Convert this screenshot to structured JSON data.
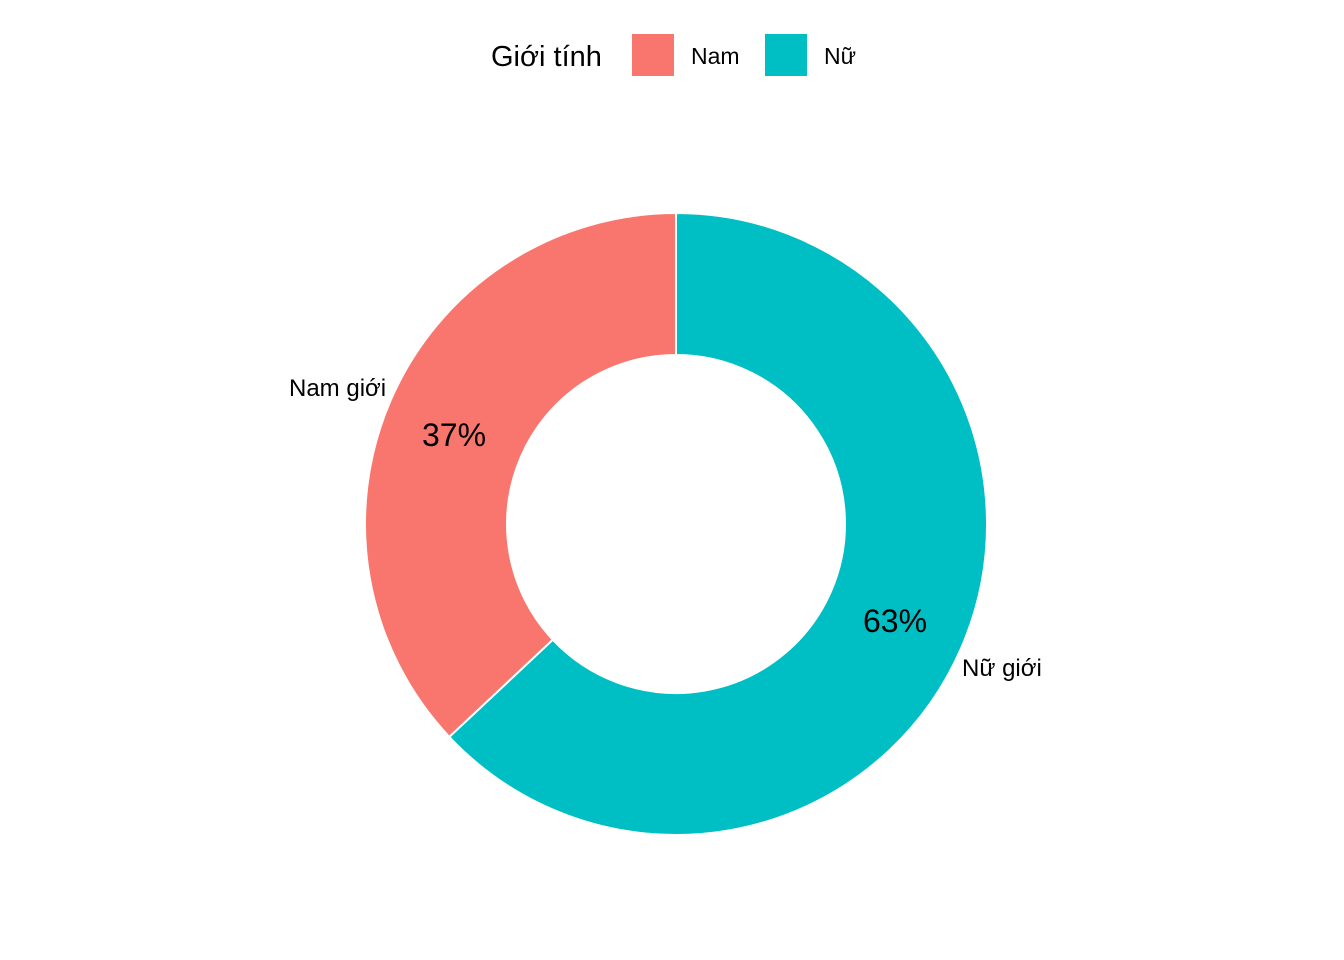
{
  "chart_data": {
    "type": "pie",
    "style": "donut",
    "legend": {
      "title": "Giới tính",
      "position": "top",
      "entries": [
        {
          "label": "Nam",
          "color": "#F8766D"
        },
        {
          "label": "Nữ",
          "color": "#00BFC4"
        }
      ]
    },
    "slices": [
      {
        "category": "Nam",
        "label": "Nam giới",
        "value": 37,
        "percent_label": "37%",
        "color": "#F8766D"
      },
      {
        "category": "Nữ",
        "label": "Nữ giới",
        "value": 63,
        "percent_label": "63%",
        "color": "#00BFC4"
      }
    ],
    "direction": "clockwise from top, Nữ first"
  }
}
